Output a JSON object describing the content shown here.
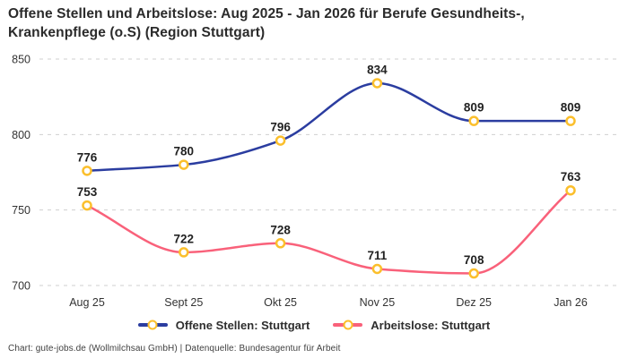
{
  "title": "Offene Stellen und Arbeitslose: Aug 2025 - Jan 2026 für Berufe Gesundheits-,\nKrankenpflege (o.S) (Region Stuttgart)",
  "footer": "Chart: gute-jobs.de (Wollmilchsau GmbH) | Datenquelle: Bundesagentur für Arbeit",
  "colors": {
    "series_blue": "#2b3da0",
    "series_pink": "#f9617a",
    "marker_stroke": "#fbbf2c",
    "marker_fill": "#ffffff",
    "grid": "#cfcfcf",
    "axis_text": "#333333",
    "value_label": "#222222",
    "title_text": "#2b2b2b"
  },
  "chart_data": {
    "type": "line",
    "categories": [
      "Aug 25",
      "Sept 25",
      "Okt 25",
      "Nov 25",
      "Dez 25",
      "Jan 26"
    ],
    "series": [
      {
        "name": "Offene Stellen: Stuttgart",
        "values": [
          776,
          780,
          796,
          834,
          809,
          809
        ],
        "color": "#2b3da0"
      },
      {
        "name": "Arbeitslose: Stuttgart",
        "values": [
          753,
          722,
          728,
          711,
          708,
          763
        ],
        "color": "#f9617a"
      }
    ],
    "yticks": [
      700,
      750,
      800,
      850
    ],
    "ylim": [
      700,
      850
    ],
    "grid": "horizontal-dashed",
    "legend_position": "bottom",
    "marker": {
      "shape": "circle-ring",
      "fill": "#ffffff",
      "stroke": "#fbbf2c"
    },
    "value_labels": "above-points"
  }
}
